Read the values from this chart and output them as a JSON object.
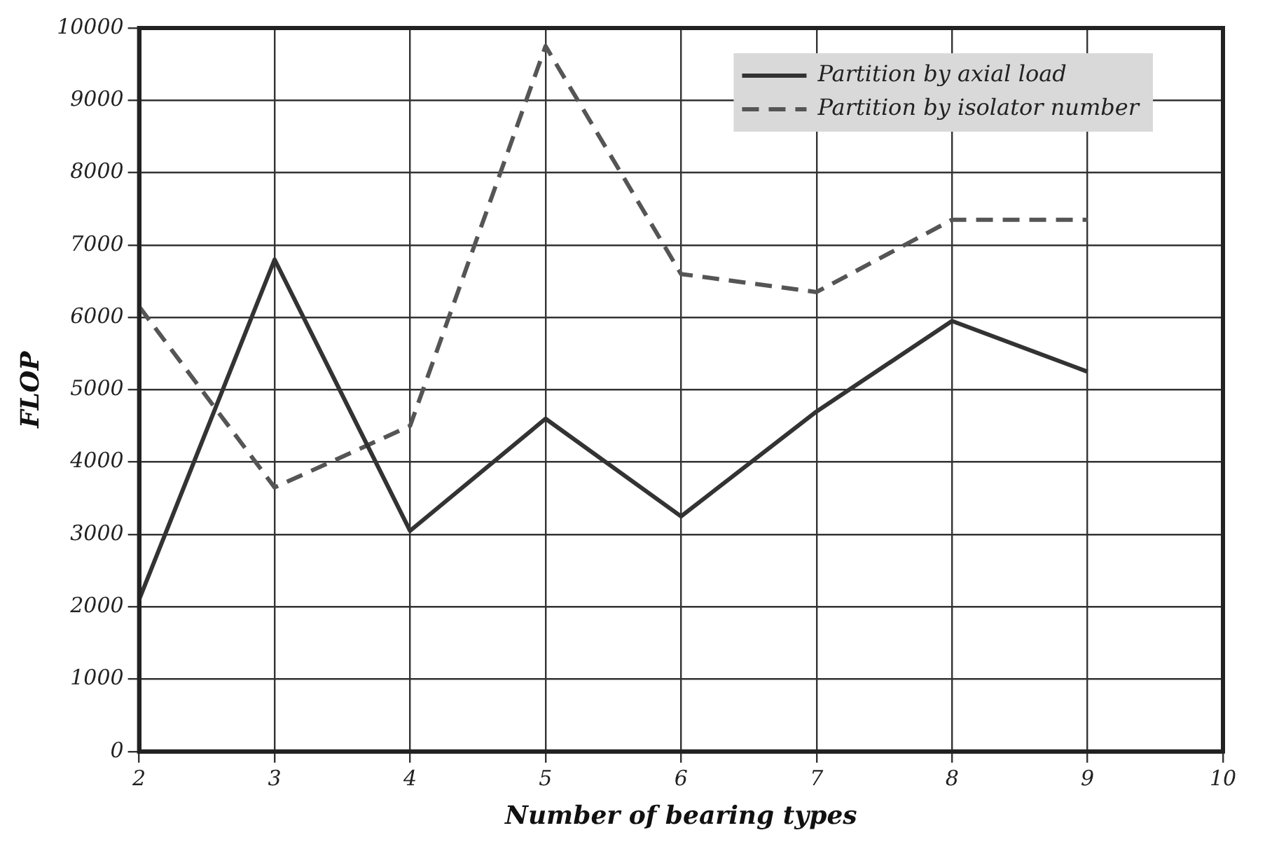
{
  "chart_data": {
    "type": "line",
    "xlabel": "Number of bearing types",
    "ylabel": "FLOP",
    "x": [
      2,
      3,
      4,
      5,
      6,
      7,
      8,
      9
    ],
    "series": [
      {
        "name": "Partition by axial load",
        "color": "#333333",
        "line_style": "solid",
        "values": [
          2100,
          6800,
          3050,
          4600,
          3250,
          4700,
          5950,
          5250
        ]
      },
      {
        "name": "Partition by isolator number",
        "color": "#555555",
        "line_style": "dashed",
        "values": [
          6150,
          3650,
          4500,
          9750,
          6600,
          6350,
          7350,
          7350
        ]
      }
    ],
    "xlim": [
      2,
      10
    ],
    "xticks": [
      2,
      3,
      4,
      5,
      6,
      7,
      8,
      9,
      10
    ],
    "ylim": [
      0,
      10000
    ],
    "yticks": [
      0,
      1000,
      2000,
      3000,
      4000,
      5000,
      6000,
      7000,
      8000,
      9000,
      10000
    ],
    "grid": true,
    "legend": "top right",
    "marker": "none"
  }
}
